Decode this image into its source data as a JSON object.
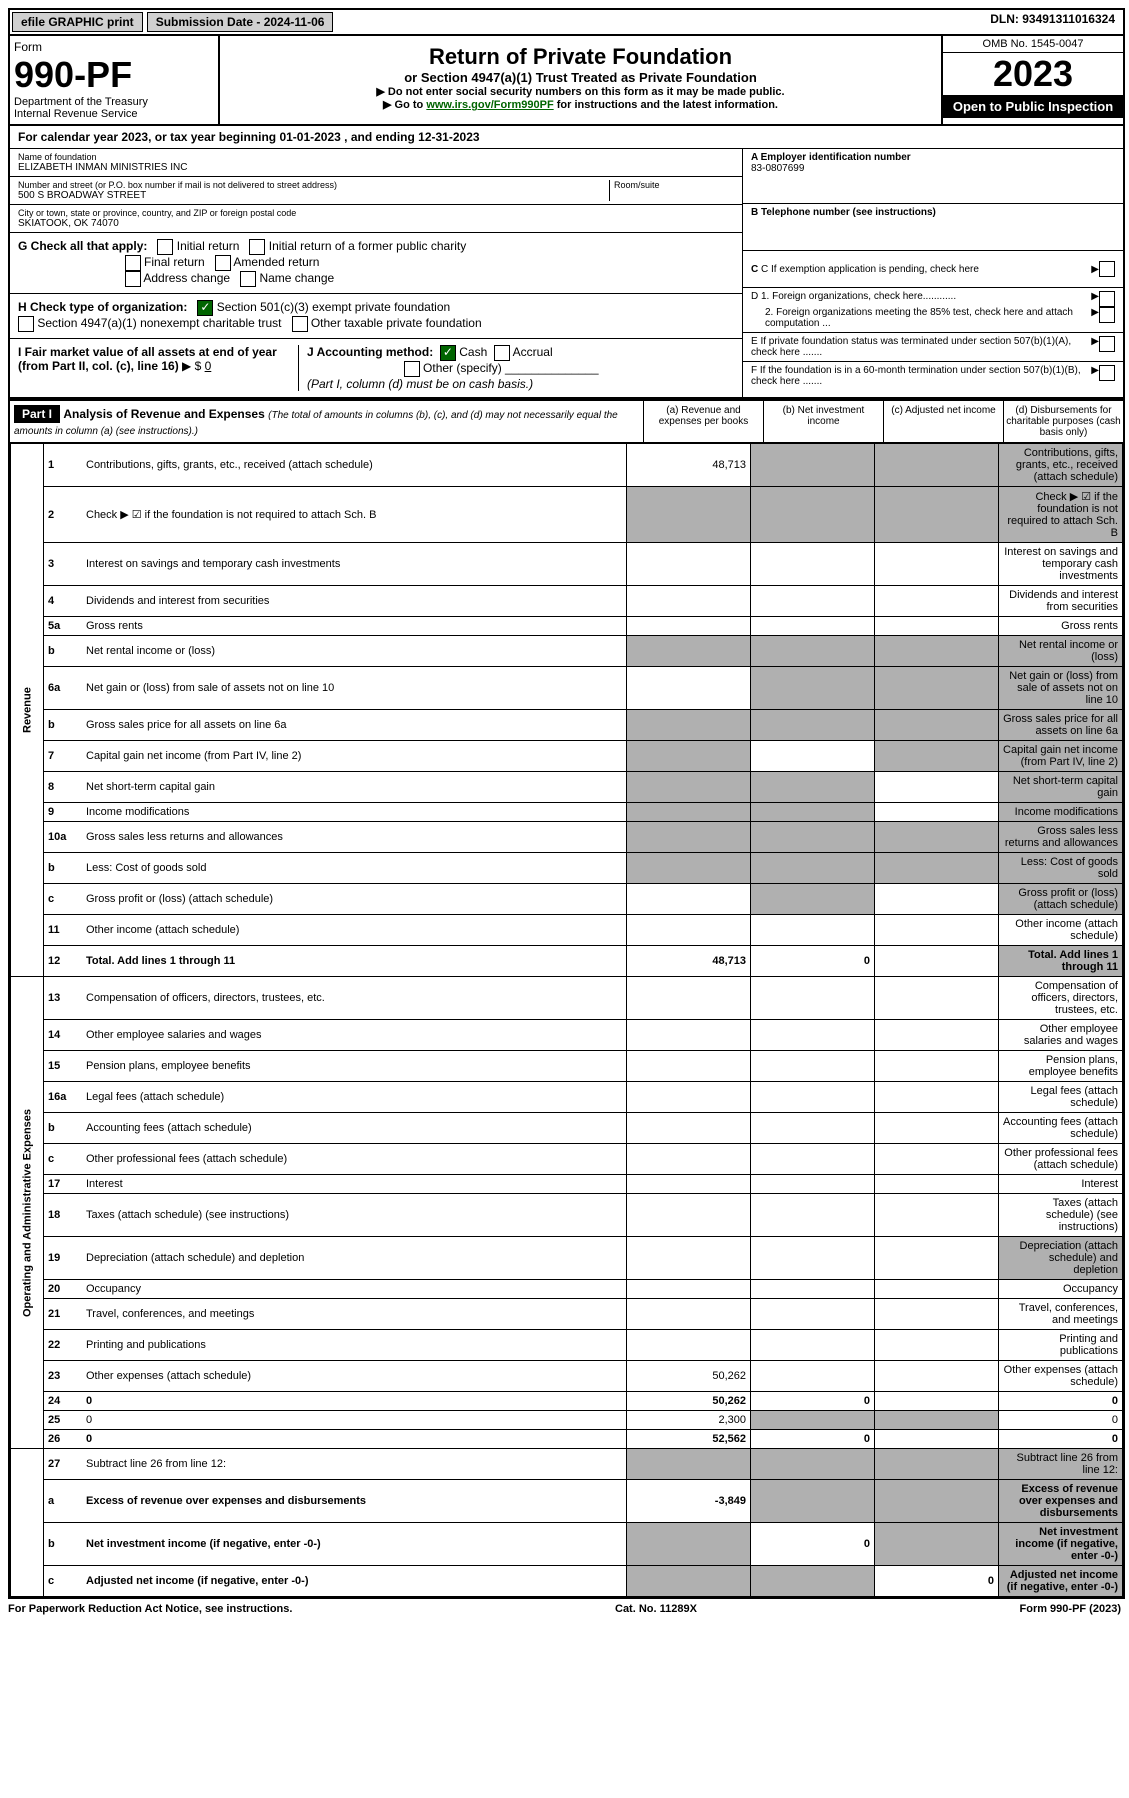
{
  "topbar": {
    "efile": "efile GRAPHIC print",
    "submission": "Submission Date - 2024-11-06",
    "dln": "DLN: 93491311016324"
  },
  "header": {
    "form_label": "Form",
    "form_num": "990-PF",
    "dept": "Department of the Treasury",
    "irs": "Internal Revenue Service",
    "title": "Return of Private Foundation",
    "subtitle": "or Section 4947(a)(1) Trust Treated as Private Foundation",
    "inst1": "▶ Do not enter social security numbers on this form as it may be made public.",
    "inst2_pre": "▶ Go to ",
    "inst2_link": "www.irs.gov/Form990PF",
    "inst2_post": " for instructions and the latest information.",
    "omb": "OMB No. 1545-0047",
    "year": "2023",
    "open": "Open to Public Inspection"
  },
  "calyear": "For calendar year 2023, or tax year beginning 01-01-2023                      , and ending 12-31-2023",
  "info": {
    "name_label": "Name of foundation",
    "name": "ELIZABETH INMAN MINISTRIES INC",
    "addr_label": "Number and street (or P.O. box number if mail is not delivered to street address)",
    "addr": "500 S BROADWAY STREET",
    "room_label": "Room/suite",
    "city_label": "City or town, state or province, country, and ZIP or foreign postal code",
    "city": "SKIATOOK, OK  74070",
    "ein_label": "A Employer identification number",
    "ein": "83-0807699",
    "phone_label": "B Telephone number (see instructions)",
    "c_label": "C If exemption application is pending, check here",
    "d1": "D 1. Foreign organizations, check here............",
    "d2": "2. Foreign organizations meeting the 85% test, check here and attach computation ...",
    "e": "E  If private foundation status was terminated under section 507(b)(1)(A), check here .......",
    "f": "F  If the foundation is in a 60-month termination under section 507(b)(1)(B), check here .......",
    "g_label": "G Check all that apply:",
    "g_opts": [
      "Initial return",
      "Initial return of a former public charity",
      "Final return",
      "Amended return",
      "Address change",
      "Name change"
    ],
    "h_label": "H Check type of organization:",
    "h_501c3": "Section 501(c)(3) exempt private foundation",
    "h_4947": "Section 4947(a)(1) nonexempt charitable trust",
    "h_other": "Other taxable private foundation",
    "i_label": "I Fair market value of all assets at end of year (from Part II, col. (c), line 16)",
    "i_val": "0",
    "j_label": "J Accounting method:",
    "j_cash": "Cash",
    "j_accrual": "Accrual",
    "j_other": "Other (specify)",
    "j_note": "(Part I, column (d) must be on cash basis.)"
  },
  "part1": {
    "label": "Part I",
    "title": "Analysis of Revenue and Expenses",
    "note": "(The total of amounts in columns (b), (c), and (d) may not necessarily equal the amounts in column (a) (see instructions).)",
    "col_a": "(a)   Revenue and expenses per books",
    "col_b": "(b)   Net investment income",
    "col_c": "(c)   Adjusted net income",
    "col_d": "(d)   Disbursements for charitable purposes (cash basis only)"
  },
  "side": {
    "revenue": "Revenue",
    "expenses": "Operating and Administrative Expenses"
  },
  "rows": [
    {
      "n": "1",
      "d": "Contributions, gifts, grants, etc., received (attach schedule)",
      "a": "48,713",
      "shade_bcd": true
    },
    {
      "n": "2",
      "d": "Check ▶ ☑ if the foundation is not required to attach Sch. B",
      "a": "",
      "shade_all": true
    },
    {
      "n": "3",
      "d": "Interest on savings and temporary cash investments",
      "a": ""
    },
    {
      "n": "4",
      "d": "Dividends and interest from securities",
      "a": ""
    },
    {
      "n": "5a",
      "d": "Gross rents",
      "a": ""
    },
    {
      "n": "b",
      "d": "Net rental income or (loss)",
      "a": "",
      "shade_all": true
    },
    {
      "n": "6a",
      "d": "Net gain or (loss) from sale of assets not on line 10",
      "a": "",
      "shade_bcd": true
    },
    {
      "n": "b",
      "d": "Gross sales price for all assets on line 6a",
      "a": "",
      "shade_all": true
    },
    {
      "n": "7",
      "d": "Capital gain net income (from Part IV, line 2)",
      "a": "",
      "shade_acd": true
    },
    {
      "n": "8",
      "d": "Net short-term capital gain",
      "a": "",
      "shade_abd": true
    },
    {
      "n": "9",
      "d": "Income modifications",
      "a": "",
      "shade_abd": true
    },
    {
      "n": "10a",
      "d": "Gross sales less returns and allowances",
      "a": "",
      "shade_all": true
    },
    {
      "n": "b",
      "d": "Less: Cost of goods sold",
      "a": "",
      "shade_all": true
    },
    {
      "n": "c",
      "d": "Gross profit or (loss) (attach schedule)",
      "a": "",
      "shade_bd": true
    },
    {
      "n": "11",
      "d": "Other income (attach schedule)",
      "a": ""
    },
    {
      "n": "12",
      "d": "Total. Add lines 1 through 11",
      "a": "48,713",
      "b": "0",
      "bold": true,
      "shade_d": true
    }
  ],
  "exp_rows": [
    {
      "n": "13",
      "d": "Compensation of officers, directors, trustees, etc.",
      "a": ""
    },
    {
      "n": "14",
      "d": "Other employee salaries and wages",
      "a": ""
    },
    {
      "n": "15",
      "d": "Pension plans, employee benefits",
      "a": ""
    },
    {
      "n": "16a",
      "d": "Legal fees (attach schedule)",
      "a": ""
    },
    {
      "n": "b",
      "d": "Accounting fees (attach schedule)",
      "a": ""
    },
    {
      "n": "c",
      "d": "Other professional fees (attach schedule)",
      "a": ""
    },
    {
      "n": "17",
      "d": "Interest",
      "a": ""
    },
    {
      "n": "18",
      "d": "Taxes (attach schedule) (see instructions)",
      "a": ""
    },
    {
      "n": "19",
      "d": "Depreciation (attach schedule) and depletion",
      "a": "",
      "shade_d": true
    },
    {
      "n": "20",
      "d": "Occupancy",
      "a": ""
    },
    {
      "n": "21",
      "d": "Travel, conferences, and meetings",
      "a": ""
    },
    {
      "n": "22",
      "d": "Printing and publications",
      "a": ""
    },
    {
      "n": "23",
      "d": "Other expenses (attach schedule)",
      "a": "50,262"
    },
    {
      "n": "24",
      "d": "0",
      "a": "50,262",
      "b": "0",
      "bold": true
    },
    {
      "n": "25",
      "d": "0",
      "a": "2,300",
      "shade_bc": true
    },
    {
      "n": "26",
      "d": "0",
      "a": "52,562",
      "b": "0",
      "bold": true
    }
  ],
  "final_rows": [
    {
      "n": "27",
      "d": "Subtract line 26 from line 12:",
      "shade_all": true
    },
    {
      "n": "a",
      "d": "Excess of revenue over expenses and disbursements",
      "a": "-3,849",
      "bold": true,
      "shade_bcd": true
    },
    {
      "n": "b",
      "d": "Net investment income (if negative, enter -0-)",
      "b": "0",
      "bold": true,
      "shade_acd": true
    },
    {
      "n": "c",
      "d": "Adjusted net income (if negative, enter -0-)",
      "c": "0",
      "bold": true,
      "shade_abd": true
    }
  ],
  "footer": {
    "left": "For Paperwork Reduction Act Notice, see instructions.",
    "mid": "Cat. No. 11289X",
    "right": "Form 990-PF (2023)"
  }
}
